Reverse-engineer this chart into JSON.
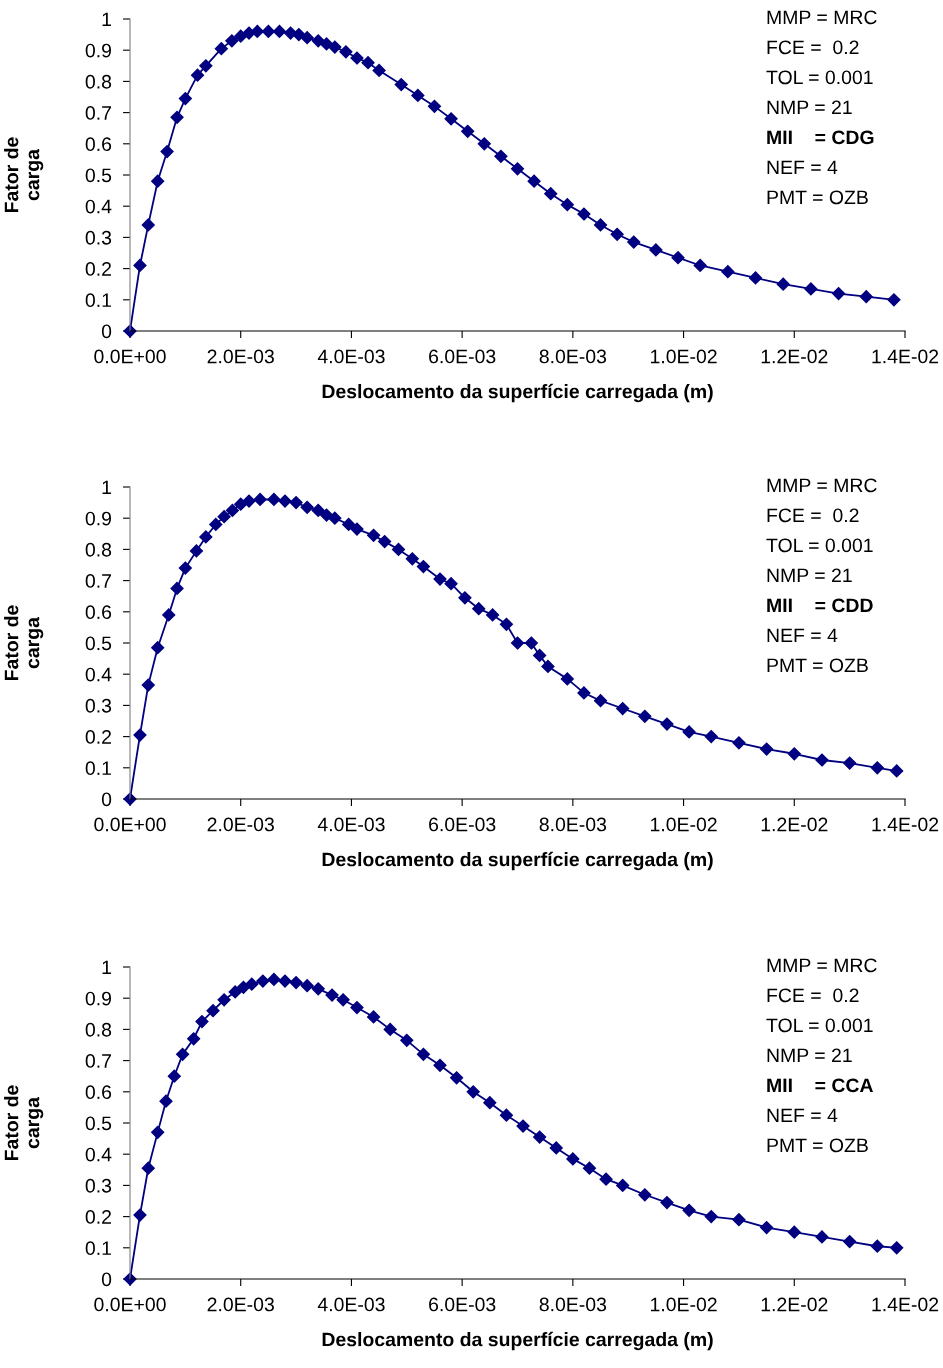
{
  "chart_data": [
    {
      "type": "line",
      "xlabel": "Deslocamento da superfície carregada (m)",
      "ylabel": "Fator de\ncarga",
      "marker": "diamond",
      "line_style": "solid",
      "grid": false,
      "legend": false,
      "xlim": [
        0,
        0.014
      ],
      "ylim": [
        0,
        1
      ],
      "xticks": [
        {
          "value": 0,
          "label": "0.0E+00"
        },
        {
          "value": 0.002,
          "label": "2.0E-03"
        },
        {
          "value": 0.004,
          "label": "4.0E-03"
        },
        {
          "value": 0.006,
          "label": "6.0E-03"
        },
        {
          "value": 0.008,
          "label": "8.0E-03"
        },
        {
          "value": 0.01,
          "label": "1.0E-02"
        },
        {
          "value": 0.012,
          "label": "1.2E-02"
        },
        {
          "value": 0.014,
          "label": "1.4E-02"
        }
      ],
      "yticks": [
        0,
        0.1,
        0.2,
        0.3,
        0.4,
        0.5,
        0.6,
        0.7,
        0.8,
        0.9,
        1
      ],
      "annotations": [
        "MMP = MRC",
        "FCE =  0.2",
        "TOL = 0.001",
        "NMP = 21",
        "MII    = CDG",
        "NEF = 4",
        "PMT = OZB"
      ],
      "series": [
        {
          "color": "#000080",
          "x": [
            0,
            0.00018,
            0.00033,
            0.0005,
            0.00067,
            0.00085,
            0.001,
            0.00122,
            0.00137,
            0.00165,
            0.00184,
            0.002,
            0.00215,
            0.0023,
            0.0025,
            0.0027,
            0.0029,
            0.00305,
            0.0032,
            0.0034,
            0.00355,
            0.0037,
            0.0039,
            0.0041,
            0.0043,
            0.0045,
            0.0049,
            0.0052,
            0.0055,
            0.0058,
            0.0061,
            0.0064,
            0.0067,
            0.007,
            0.0073,
            0.0076,
            0.0079,
            0.0082,
            0.0085,
            0.0088,
            0.0091,
            0.0095,
            0.0099,
            0.0103,
            0.0108,
            0.0113,
            0.0118,
            0.0123,
            0.0128,
            0.0133,
            0.0138
          ],
          "values": [
            0,
            0.21,
            0.34,
            0.48,
            0.575,
            0.685,
            0.745,
            0.82,
            0.85,
            0.905,
            0.93,
            0.945,
            0.955,
            0.96,
            0.96,
            0.96,
            0.955,
            0.95,
            0.94,
            0.93,
            0.92,
            0.91,
            0.895,
            0.875,
            0.86,
            0.835,
            0.79,
            0.755,
            0.72,
            0.68,
            0.64,
            0.6,
            0.56,
            0.52,
            0.48,
            0.44,
            0.405,
            0.375,
            0.34,
            0.31,
            0.285,
            0.26,
            0.235,
            0.21,
            0.19,
            0.17,
            0.15,
            0.135,
            0.12,
            0.11,
            0.1
          ]
        }
      ]
    },
    {
      "type": "line",
      "xlabel": "Deslocamento da superfície carregada (m)",
      "ylabel": "Fator de\ncarga",
      "marker": "diamond",
      "line_style": "solid",
      "grid": false,
      "legend": false,
      "xlim": [
        0,
        0.014
      ],
      "ylim": [
        0,
        1
      ],
      "xticks": [
        {
          "value": 0,
          "label": "0.0E+00"
        },
        {
          "value": 0.002,
          "label": "2.0E-03"
        },
        {
          "value": 0.004,
          "label": "4.0E-03"
        },
        {
          "value": 0.006,
          "label": "6.0E-03"
        },
        {
          "value": 0.008,
          "label": "8.0E-03"
        },
        {
          "value": 0.01,
          "label": "1.0E-02"
        },
        {
          "value": 0.012,
          "label": "1.2E-02"
        },
        {
          "value": 0.014,
          "label": "1.4E-02"
        }
      ],
      "yticks": [
        0,
        0.1,
        0.2,
        0.3,
        0.4,
        0.5,
        0.6,
        0.7,
        0.8,
        0.9,
        1
      ],
      "annotations": [
        "MMP = MRC",
        "FCE =  0.2",
        "TOL = 0.001",
        "NMP = 21",
        "MII    = CDD",
        "NEF = 4",
        "PMT = OZB"
      ],
      "series": [
        {
          "color": "#000080",
          "x": [
            0,
            0.00018,
            0.00033,
            0.0005,
            0.0007,
            0.00085,
            0.001,
            0.0012,
            0.00137,
            0.00155,
            0.0017,
            0.00185,
            0.002,
            0.00215,
            0.00235,
            0.0026,
            0.0028,
            0.003,
            0.0032,
            0.0034,
            0.00355,
            0.0037,
            0.00395,
            0.0041,
            0.0044,
            0.0046,
            0.00485,
            0.0051,
            0.0053,
            0.0056,
            0.0058,
            0.00605,
            0.0063,
            0.00655,
            0.0068,
            0.007,
            0.00725,
            0.0074,
            0.00755,
            0.0079,
            0.0082,
            0.0085,
            0.0089,
            0.0093,
            0.0097,
            0.0101,
            0.0105,
            0.011,
            0.0115,
            0.012,
            0.0125,
            0.013,
            0.0135,
            0.01385
          ],
          "values": [
            0,
            0.205,
            0.365,
            0.485,
            0.59,
            0.675,
            0.74,
            0.795,
            0.84,
            0.88,
            0.905,
            0.925,
            0.945,
            0.955,
            0.96,
            0.96,
            0.955,
            0.95,
            0.935,
            0.925,
            0.91,
            0.9,
            0.88,
            0.865,
            0.845,
            0.825,
            0.8,
            0.77,
            0.745,
            0.705,
            0.69,
            0.645,
            0.61,
            0.59,
            0.56,
            0.5,
            0.5,
            0.46,
            0.425,
            0.385,
            0.34,
            0.315,
            0.29,
            0.265,
            0.24,
            0.215,
            0.2,
            0.18,
            0.16,
            0.145,
            0.125,
            0.115,
            0.1,
            0.09
          ]
        }
      ]
    },
    {
      "type": "line",
      "xlabel": "Deslocamento da superfície carregada (m)",
      "ylabel": "Fator de\ncarga",
      "marker": "diamond",
      "line_style": "solid",
      "grid": false,
      "legend": false,
      "xlim": [
        0,
        0.014
      ],
      "ylim": [
        0,
        1
      ],
      "xticks": [
        {
          "value": 0,
          "label": "0.0E+00"
        },
        {
          "value": 0.002,
          "label": "2.0E-03"
        },
        {
          "value": 0.004,
          "label": "4.0E-03"
        },
        {
          "value": 0.006,
          "label": "6.0E-03"
        },
        {
          "value": 0.008,
          "label": "8.0E-03"
        },
        {
          "value": 0.01,
          "label": "1.0E-02"
        },
        {
          "value": 0.012,
          "label": "1.2E-02"
        },
        {
          "value": 0.014,
          "label": "1.4E-02"
        }
      ],
      "yticks": [
        0,
        0.1,
        0.2,
        0.3,
        0.4,
        0.5,
        0.6,
        0.7,
        0.8,
        0.9,
        1
      ],
      "annotations": [
        "MMP = MRC",
        "FCE =  0.2",
        "TOL = 0.001",
        "NMP = 21",
        "MII    = CCA",
        "NEF = 4",
        "PMT = OZB"
      ],
      "series": [
        {
          "color": "#000080",
          "x": [
            0,
            0.00018,
            0.00033,
            0.0005,
            0.00065,
            0.0008,
            0.00095,
            0.00115,
            0.0013,
            0.0015,
            0.0017,
            0.0019,
            0.00205,
            0.0022,
            0.0024,
            0.0026,
            0.0028,
            0.003,
            0.0032,
            0.0034,
            0.00365,
            0.00385,
            0.0041,
            0.0044,
            0.0047,
            0.005,
            0.0053,
            0.0056,
            0.0059,
            0.0062,
            0.0065,
            0.0068,
            0.0071,
            0.0074,
            0.0077,
            0.008,
            0.0083,
            0.0086,
            0.0089,
            0.0093,
            0.0097,
            0.0101,
            0.0105,
            0.011,
            0.0115,
            0.012,
            0.0125,
            0.013,
            0.0135,
            0.01385
          ],
          "values": [
            0,
            0.205,
            0.355,
            0.47,
            0.57,
            0.65,
            0.72,
            0.77,
            0.825,
            0.86,
            0.895,
            0.92,
            0.935,
            0.945,
            0.955,
            0.96,
            0.955,
            0.95,
            0.94,
            0.93,
            0.91,
            0.895,
            0.87,
            0.84,
            0.8,
            0.765,
            0.72,
            0.685,
            0.645,
            0.6,
            0.565,
            0.525,
            0.49,
            0.455,
            0.42,
            0.385,
            0.355,
            0.32,
            0.3,
            0.27,
            0.245,
            0.22,
            0.2,
            0.19,
            0.165,
            0.15,
            0.135,
            0.12,
            0.105,
            0.1
          ]
        }
      ]
    }
  ]
}
